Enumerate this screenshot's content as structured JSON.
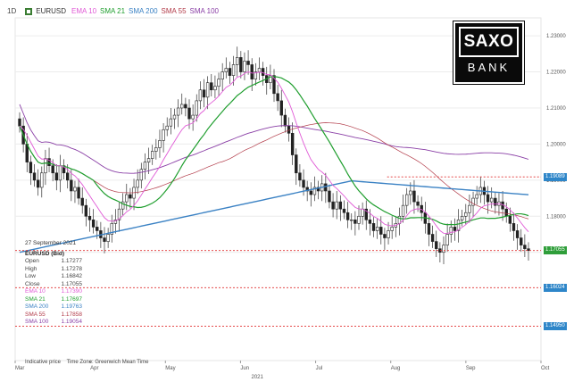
{
  "header": {
    "timeframe": "1D",
    "symbol": "EURUSD",
    "indicators": [
      {
        "label": "EMA 10",
        "color": "#e05ad6"
      },
      {
        "label": "SMA 21",
        "color": "#1f9e2e"
      },
      {
        "label": "SMA 200",
        "color": "#3b82c4"
      },
      {
        "label": "SMA 55",
        "color": "#b23a48"
      },
      {
        "label": "SMA 100",
        "color": "#8a3fa6"
      }
    ]
  },
  "logo": {
    "top": "SAXO",
    "bottom": "BANK"
  },
  "info": {
    "date": "27 September 2021",
    "pair": "EURUSD (Bid)",
    "rows": [
      {
        "label": "Open",
        "value": "1.17277",
        "color": "#444444"
      },
      {
        "label": "High",
        "value": "1.17278",
        "color": "#444444"
      },
      {
        "label": "Low",
        "value": "1.16842",
        "color": "#444444"
      },
      {
        "label": "Close",
        "value": "1.17055",
        "color": "#444444"
      },
      {
        "label": "EMA 10",
        "value": "1.17390",
        "color": "#e05ad6"
      },
      {
        "label": "SMA 21",
        "value": "1.17697",
        "color": "#1f9e2e"
      },
      {
        "label": "SMA 200",
        "value": "1.19763",
        "color": "#3b82c4"
      },
      {
        "label": "SMA 55",
        "value": "1.17858",
        "color": "#b23a48"
      },
      {
        "label": "SMA 100",
        "value": "1.19054",
        "color": "#8a3fa6"
      }
    ]
  },
  "footer": {
    "price_note": "Indicative price",
    "timezone": "Time Zone: Greenwich Mean Time"
  },
  "tags": [
    {
      "value": "1.19089",
      "color": "#2e86c9",
      "price": 1.1909
    },
    {
      "value": "1.17055",
      "color": "#2f9e3a",
      "price": 1.1705
    },
    {
      "value": "1.16024",
      "color": "#2e86c9",
      "price": 1.1602
    },
    {
      "value": "1.14950",
      "color": "#2e86c9",
      "price": 1.1495
    }
  ],
  "chart_data": {
    "type": "candlestick",
    "y_axis": {
      "ticks": [
        "1.23000",
        "1.22000",
        "1.21000",
        "1.20000",
        "1.19000",
        "1.18000",
        "1.17000"
      ],
      "min": 1.14,
      "max": 1.233
    },
    "x_axis": {
      "labels": [
        "Mar",
        "Apr",
        "May",
        "Jun",
        "Jul",
        "Aug",
        "Sep",
        "Oct"
      ],
      "year": "2021"
    },
    "levels": [
      {
        "price": 1.1909,
        "from": "Aug",
        "color": "#e03030"
      },
      {
        "price": 1.1705,
        "from": "start",
        "color": "#e03030"
      },
      {
        "price": 1.1602,
        "from": "start",
        "color": "#e03030"
      },
      {
        "price": 1.1495,
        "from": "start",
        "color": "#e03030"
      }
    ],
    "close": [
      1.205,
      1.2,
      1.195,
      1.192,
      1.19,
      1.188,
      1.192,
      1.196,
      1.194,
      1.192,
      1.19,
      1.194,
      1.192,
      1.19,
      1.187,
      1.188,
      1.185,
      1.183,
      1.18,
      1.179,
      1.177,
      1.176,
      1.174,
      1.173,
      1.175,
      1.178,
      1.179,
      1.182,
      1.184,
      1.186,
      1.185,
      1.188,
      1.19,
      1.193,
      1.195,
      1.196,
      1.198,
      1.199,
      1.201,
      1.204,
      1.205,
      1.207,
      1.208,
      1.21,
      1.211,
      1.21,
      1.207,
      1.208,
      1.212,
      1.215,
      1.213,
      1.217,
      1.215,
      1.216,
      1.218,
      1.22,
      1.221,
      1.219,
      1.222,
      1.224,
      1.22,
      1.223,
      1.222,
      1.218,
      1.22,
      1.221,
      1.219,
      1.217,
      1.219,
      1.214,
      1.212,
      1.208,
      1.205,
      1.203,
      1.197,
      1.192,
      1.19,
      1.188,
      1.187,
      1.186,
      1.188,
      1.187,
      1.189,
      1.187,
      1.184,
      1.182,
      1.184,
      1.182,
      1.181,
      1.179,
      1.179,
      1.178,
      1.18,
      1.182,
      1.179,
      1.178,
      1.176,
      1.177,
      1.175,
      1.174,
      1.176,
      1.177,
      1.178,
      1.18,
      1.183,
      1.186,
      1.187,
      1.184,
      1.183,
      1.181,
      1.178,
      1.175,
      1.173,
      1.171,
      1.17,
      1.172,
      1.175,
      1.177,
      1.176,
      1.179,
      1.18,
      1.181,
      1.183,
      1.185,
      1.186,
      1.188,
      1.186,
      1.184,
      1.185,
      1.183,
      1.184,
      1.182,
      1.18,
      1.178,
      1.176,
      1.174,
      1.172,
      1.171,
      1.1705
    ]
  }
}
